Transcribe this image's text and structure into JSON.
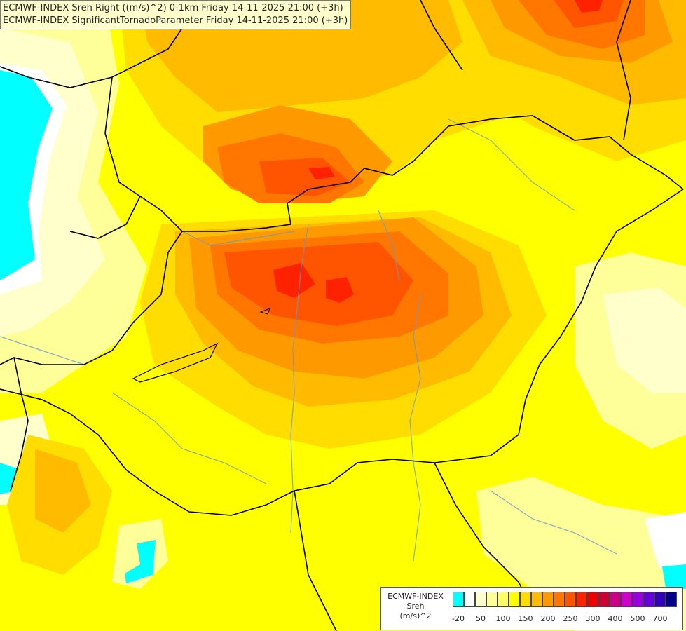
{
  "title": {
    "line1": "ECMWF-INDEX Sreh Right ((m/s)^2) 0-1km Friday 14-11-2025 21:00 (+3h)",
    "line2": "ECMWF-INDEX SignificantTornadoParameter Friday 14-11-2025 21:00 (+3h)"
  },
  "legend": {
    "model": "ECMWF-INDEX",
    "variable": "Sreh",
    "unit": "(m/s)^2",
    "colors": [
      "#00ffff",
      "#ffffff",
      "#ffffcc",
      "#ffff99",
      "#ffff66",
      "#ffff00",
      "#ffdd00",
      "#ffbb00",
      "#ff9900",
      "#ff7700",
      "#ff5500",
      "#ff2200",
      "#ee0000",
      "#cc0033",
      "#cc0088",
      "#cc00cc",
      "#9900dd",
      "#6600dd",
      "#3300bb",
      "#000088"
    ],
    "ticks": [
      {
        "label": "-20",
        "pos": 1
      },
      {
        "label": "50",
        "pos": 3
      },
      {
        "label": "100",
        "pos": 5
      },
      {
        "label": "150",
        "pos": 7
      },
      {
        "label": "200",
        "pos": 9
      },
      {
        "label": "250",
        "pos": 11
      },
      {
        "label": "300",
        "pos": 13
      },
      {
        "label": "400",
        "pos": 15
      },
      {
        "label": "500",
        "pos": 17
      },
      {
        "label": "700",
        "pos": 19
      }
    ]
  },
  "map_colors": {
    "cyan": "#00ffff",
    "white": "#ffffff",
    "pale": "#ffffcc",
    "lightyellow": "#ffff99",
    "yellow": "#ffff00",
    "gold": "#ffdd00",
    "lightorange": "#ffbb00",
    "orange": "#ff9900",
    "darkorange": "#ff7700",
    "redorange": "#ff5500",
    "red": "#ff2200",
    "border": "#000000",
    "river": "#6699cc"
  }
}
